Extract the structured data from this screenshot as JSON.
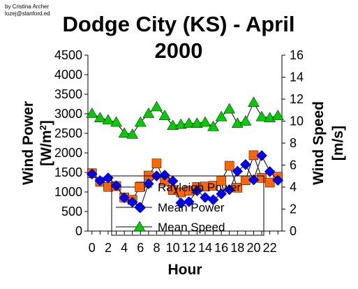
{
  "credit": [
    "by Cristina Archer",
    "lozej@stanford.ed"
  ],
  "chart_data": {
    "type": "line",
    "title": [
      "Dodge City (KS) - April",
      "2000"
    ],
    "xlabel": "Hour",
    "ylabel_left": [
      "Wind Power",
      "[W/m",
      "2",
      "]"
    ],
    "ylabel_right": [
      "Wind Speed",
      "[m/s]"
    ],
    "x": [
      0,
      1,
      2,
      3,
      4,
      5,
      6,
      7,
      8,
      9,
      10,
      11,
      12,
      13,
      14,
      15,
      16,
      17,
      18,
      19,
      20,
      21,
      22,
      23
    ],
    "x_ticks": [
      "0",
      "2",
      "4",
      "6",
      "8",
      "10",
      "12",
      "14",
      "16",
      "18",
      "20",
      "22"
    ],
    "x_tick_values": [
      0,
      2,
      4,
      6,
      8,
      10,
      12,
      14,
      16,
      18,
      20,
      22
    ],
    "xlim": [
      -0.5,
      23.5
    ],
    "ylim_left": [
      0,
      4500
    ],
    "ylim_right": [
      0,
      16
    ],
    "y_ticks_left": [
      "0",
      "500",
      "1000",
      "1500",
      "2000",
      "2500",
      "3000",
      "3500",
      "4000",
      "4500"
    ],
    "y_tick_values_left": [
      0,
      500,
      1000,
      1500,
      2000,
      2500,
      3000,
      3500,
      4000,
      4500
    ],
    "y_ticks_right": [
      "0",
      "2",
      "4",
      "6",
      "8",
      "10",
      "12",
      "14",
      "16"
    ],
    "y_tick_values_right": [
      0,
      2,
      4,
      6,
      8,
      10,
      12,
      14,
      16
    ],
    "grid": false,
    "legend_position": "bottom-center",
    "series": [
      {
        "name": "Rayleigh Power",
        "axis": "left",
        "marker": "square",
        "color": "#ff6600",
        "values": [
          1480,
          1260,
          1130,
          1150,
          860,
          800,
          1140,
          1420,
          1730,
          1270,
          1050,
          990,
          1030,
          1130,
          1140,
          1160,
          1290,
          1670,
          1110,
          1300,
          1940,
          1360,
          1240,
          1390
        ]
      },
      {
        "name": "Mean Power",
        "axis": "left",
        "marker": "diamond",
        "color": "#0000ff",
        "values": [
          1460,
          1290,
          1360,
          1160,
          850,
          740,
          600,
          1210,
          1410,
          1430,
          1280,
          720,
          750,
          1030,
          860,
          800,
          950,
          1060,
          1530,
          1700,
          1310,
          1930,
          1520,
          1300
        ]
      },
      {
        "name": "Mean Speed",
        "axis": "right",
        "marker": "triangle",
        "color": "#00cc00",
        "values": [
          10.7,
          10.3,
          10.1,
          9.9,
          8.9,
          8.8,
          9.9,
          10.7,
          11.3,
          10.5,
          9.6,
          9.7,
          9.8,
          9.8,
          9.9,
          9.5,
          10.4,
          11.1,
          9.8,
          10.0,
          11.7,
          10.4,
          10.3,
          10.5
        ]
      }
    ]
  },
  "colors": {
    "line": "#000000",
    "background": "#ffffff"
  }
}
